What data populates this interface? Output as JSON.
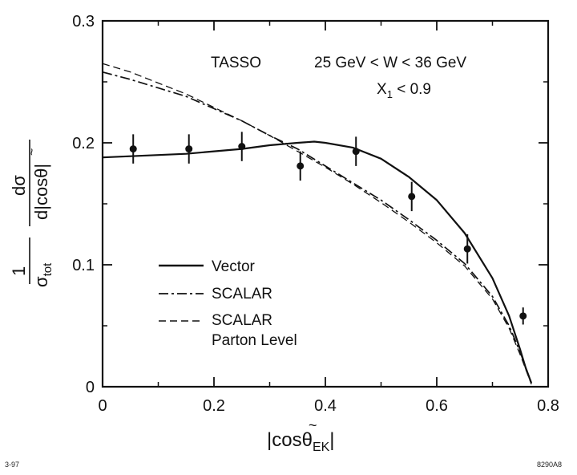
{
  "chart_data": {
    "type": "line",
    "xlabel": {
      "prefix": "|cos",
      "symbol": "θ",
      "subscript": "EK",
      "suffix": "|"
    },
    "ylabel": {
      "numerator_left": "1",
      "numerator_right": "dσ",
      "denominator_left": "σ",
      "denominator_left_sub": "tot",
      "denominator_right": "d|cosθ|"
    },
    "xlim": [
      0,
      0.8
    ],
    "ylim": [
      0,
      0.3
    ],
    "x_ticks": [
      "0",
      "0.2",
      "0.4",
      "0.6",
      "0.8"
    ],
    "y_ticks": [
      "0",
      "0.1",
      "0.2",
      "0.3"
    ],
    "annotations": {
      "experiment": "TASSO",
      "energy_range": "25 GeV < W < 36 GeV",
      "cut_main": "X",
      "cut_sub": "1",
      "cut_rest": " < 0.9"
    },
    "series": [
      {
        "name": "Vector",
        "style": "solid",
        "x": [
          0,
          0.05,
          0.1,
          0.15,
          0.2,
          0.25,
          0.3,
          0.35,
          0.38,
          0.4,
          0.45,
          0.5,
          0.55,
          0.6,
          0.65,
          0.7,
          0.73,
          0.75,
          0.76,
          0.77
        ],
        "y": [
          0.188,
          0.189,
          0.19,
          0.191,
          0.193,
          0.195,
          0.198,
          0.2,
          0.201,
          0.2,
          0.196,
          0.187,
          0.172,
          0.153,
          0.126,
          0.089,
          0.058,
          0.03,
          0.015,
          0.003
        ]
      },
      {
        "name": "SCALAR",
        "style": "dashdot",
        "x": [
          0,
          0.05,
          0.1,
          0.15,
          0.2,
          0.25,
          0.3,
          0.35,
          0.4,
          0.45,
          0.5,
          0.55,
          0.6,
          0.65,
          0.7,
          0.73,
          0.75,
          0.77
        ],
        "y": [
          0.258,
          0.252,
          0.245,
          0.238,
          0.228,
          0.218,
          0.206,
          0.195,
          0.181,
          0.167,
          0.153,
          0.137,
          0.12,
          0.101,
          0.074,
          0.05,
          0.028,
          0.003
        ]
      },
      {
        "name": "SCALAR Parton Level",
        "legend_lines": [
          "SCALAR",
          "Parton Level"
        ],
        "style": "dashed",
        "x": [
          0,
          0.05,
          0.1,
          0.15,
          0.2,
          0.25,
          0.3,
          0.35,
          0.4,
          0.45,
          0.5,
          0.55,
          0.6,
          0.65,
          0.7,
          0.73,
          0.75,
          0.77
        ],
        "y": [
          0.265,
          0.258,
          0.249,
          0.24,
          0.229,
          0.218,
          0.206,
          0.193,
          0.18,
          0.166,
          0.151,
          0.135,
          0.118,
          0.099,
          0.072,
          0.048,
          0.026,
          0.002
        ]
      }
    ],
    "data_points": {
      "x": [
        0.055,
        0.155,
        0.25,
        0.355,
        0.455,
        0.555,
        0.655,
        0.755
      ],
      "y": [
        0.195,
        0.195,
        0.197,
        0.181,
        0.193,
        0.156,
        0.113,
        0.058
      ],
      "err": [
        0.012,
        0.012,
        0.012,
        0.012,
        0.012,
        0.012,
        0.012,
        0.007
      ]
    },
    "legend_position": "lower-left",
    "grid": false
  },
  "footer": {
    "left": "3-97",
    "right": "8290A8"
  }
}
